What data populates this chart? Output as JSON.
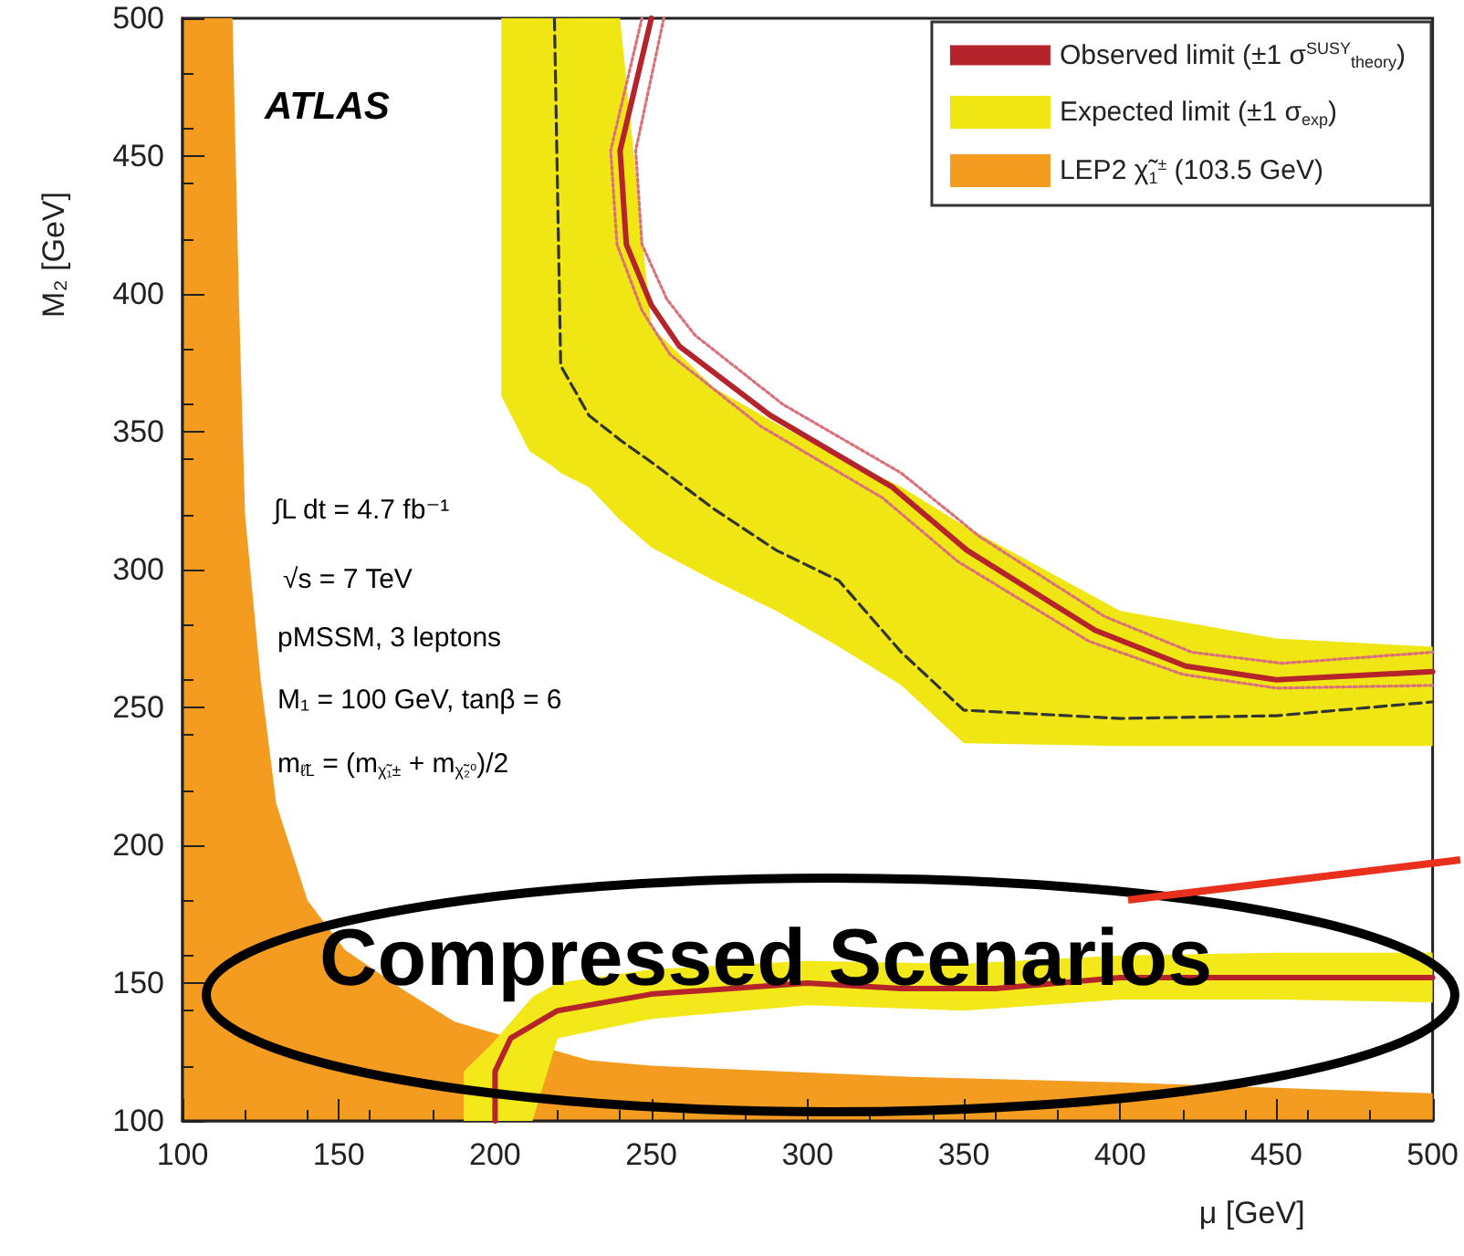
{
  "chart_data": {
    "type": "line",
    "xlabel": "μ [GeV]",
    "ylabel": "M₂ [GeV]",
    "xlim": [
      100,
      500
    ],
    "ylim": [
      100,
      500
    ],
    "xticks": [
      100,
      150,
      200,
      250,
      300,
      350,
      400,
      450,
      500
    ],
    "yticks": [
      100,
      150,
      200,
      250,
      300,
      350,
      400,
      450,
      500
    ],
    "grid": false,
    "legend": "top right",
    "annotations": [
      "ATLAS",
      "∫L dt = 4.7 fb⁻¹",
      "√s = 7 TeV",
      "pMSSM, 3 leptons",
      "M₁ = 100 GeV, tanβ = 6",
      "m$_{ℓ̃L}$ = (m$_{χ̃₁±}$ + m$_{χ̃₂⁰}$)/2",
      "Compressed Scenarios"
    ],
    "series": [
      {
        "name": "Observed limit (±1 σ$^{SUSY}$$_{theory}$)",
        "color": "#b5232b",
        "line_style": "solid",
        "x": [
          250,
          240,
          242,
          250,
          259,
          288,
          327,
          351,
          392,
          421,
          450,
          500
        ],
        "values": [
          500,
          452,
          418,
          396,
          381,
          356,
          330,
          307,
          278,
          265,
          260,
          263
        ]
      },
      {
        "name": "Expected limit (±1 σ$_{exp}$)",
        "color": "#f0e614",
        "x": [
          202,
          211,
          219,
          221,
          230,
          240,
          250,
          270,
          290,
          310,
          330,
          350,
          400,
          450,
          500
        ],
        "values": [
          null,
          null,
          null,
          null,
          null,
          null,
          null,
          null,
          null,
          null,
          null,
          null,
          null,
          null,
          null
        ],
        "lower": [
          363,
          343,
          337,
          335,
          330,
          318,
          308,
          296,
          285,
          272,
          258,
          237,
          236,
          236,
          236
        ],
        "upper": [
          500,
          500,
          500,
          500,
          500,
          500,
          388,
          366,
          353,
          341,
          330,
          316,
          285,
          275,
          272
        ]
      },
      {
        "color": "#333333",
        "line_style": "dashed",
        "x": [
          219,
          221,
          230,
          240,
          250,
          270,
          290,
          310,
          330,
          350,
          400,
          450,
          500
        ],
        "values": [
          500,
          374,
          356,
          347,
          339,
          322,
          307,
          296,
          270,
          249,
          246,
          247,
          252
        ]
      },
      {
        "type": "area",
        "name": "LEP2 χ̃$_{1}$$^{±}$ (103.5 GeV)",
        "color": "#f39c1f",
        "x": [
          100,
          116,
          118,
          120,
          125,
          130,
          140,
          152,
          170,
          187,
          230,
          250,
          333,
          400,
          500
        ],
        "values": [
          500,
          500,
          400,
          320,
          260,
          215,
          180,
          162,
          148,
          136,
          122,
          120,
          116,
          114,
          110
        ]
      },
      {
        "color": "#f2e81a",
        "x": [
          190,
          199,
          212,
          220,
          250,
          300,
          350,
          400,
          450,
          500
        ],
        "values": [
          null,
          null,
          null,
          null,
          null,
          null,
          null,
          null,
          null,
          null
        ],
        "lower": [
          100,
          100,
          100,
          130,
          137,
          142,
          140,
          144,
          144,
          143
        ],
        "upper": [
          118,
          128,
          145,
          150,
          155,
          158,
          157,
          160,
          161,
          161
        ]
      },
      {
        "color": "#d9707a",
        "line_style": "dotted",
        "x": [
          254,
          245,
          247,
          255,
          264,
          292,
          330,
          355,
          395,
          423,
          452,
          500
        ],
        "values": [
          500,
          452,
          418,
          398,
          385,
          360,
          335,
          312,
          283,
          270,
          266,
          270
        ]
      },
      {
        "color": "#d9707a",
        "line_style": "dotted",
        "x": [
          247,
          237,
          239,
          247,
          256,
          285,
          324,
          348,
          390,
          420,
          450,
          500
        ],
        "values": [
          500,
          452,
          418,
          394,
          378,
          352,
          326,
          303,
          274,
          262,
          257,
          258
        ]
      },
      {
        "color": "#b5232b",
        "line_style": "solid",
        "x": [
          200,
          200,
          205,
          220,
          250,
          300,
          330,
          360,
          400,
          450,
          500
        ],
        "values": [
          100,
          118,
          130,
          140,
          146,
          150,
          148,
          148,
          152,
          152,
          152
        ]
      }
    ]
  }
}
